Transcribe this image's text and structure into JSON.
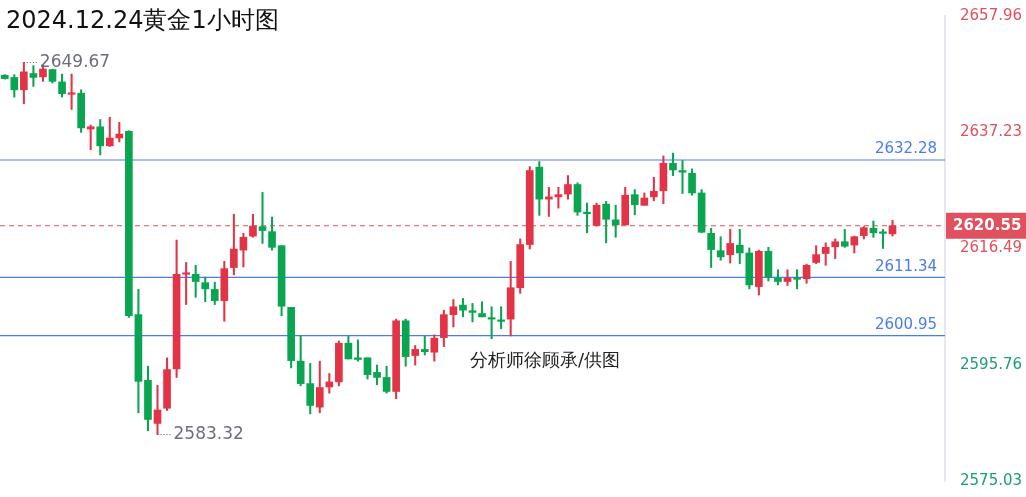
{
  "chart_data": {
    "type": "candlestick",
    "title": "2024.12.24黄金1小时图",
    "categories": [
      null,
      null,
      null,
      null,
      null,
      null,
      null,
      null,
      null,
      null,
      null,
      null,
      null,
      null,
      null,
      null,
      null,
      null,
      null,
      null,
      null,
      null,
      null,
      null,
      null,
      null,
      null,
      null,
      null,
      null,
      null,
      null,
      null,
      null,
      null,
      null,
      null,
      null,
      null,
      null,
      null,
      null,
      null,
      null,
      null,
      null,
      null,
      null,
      null,
      null,
      null,
      null,
      null,
      null,
      null,
      null,
      null,
      null,
      null,
      null,
      null,
      null,
      null,
      null,
      null,
      null,
      null,
      null,
      null,
      null,
      null,
      null,
      null,
      null,
      null,
      null,
      null,
      null,
      null,
      null,
      null,
      null,
      null,
      null,
      null,
      null,
      null,
      null,
      null,
      null,
      null,
      null,
      null,
      null,
      null,
      null,
      null,
      null,
      null
    ],
    "ohlc": [
      [
        2647.4,
        2647.5,
        2646.7,
        2646.8
      ],
      [
        2647.0,
        2647.5,
        2643.5,
        2644.8
      ],
      [
        2644.8,
        2649.67,
        2642.3,
        2648.0
      ],
      [
        2647.7,
        2649.1,
        2645.4,
        2647.0
      ],
      [
        2647.1,
        2649.3,
        2646.3,
        2648.5
      ],
      [
        2648.4,
        2648.5,
        2646.0,
        2646.3
      ],
      [
        2646.2,
        2647.6,
        2643.5,
        2644.1
      ],
      [
        2644.0,
        2647.6,
        2641.3,
        2644.2
      ],
      [
        2644.2,
        2644.8,
        2637.2,
        2638.0
      ],
      [
        2637.8,
        2638.5,
        2634.1,
        2638.2
      ],
      [
        2638.2,
        2639.5,
        2633.2,
        2634.8
      ],
      [
        2634.8,
        2639.9,
        2634.7,
        2636.2
      ],
      [
        2636.2,
        2639.0,
        2635.5,
        2636.9
      ],
      [
        2637.4,
        2637.5,
        2604.2,
        2604.5
      ],
      [
        2604.7,
        2609.2,
        2587.2,
        2592.8
      ],
      [
        2593.0,
        2595.5,
        2584.0,
        2586.0
      ],
      [
        2585.3,
        2592.1,
        2583.32,
        2587.7
      ],
      [
        2588.0,
        2597.0,
        2587.6,
        2594.9
      ],
      [
        2595.0,
        2618.0,
        2593.5,
        2611.9
      ],
      [
        2611.9,
        2614.0,
        2606.5,
        2612.1
      ],
      [
        2611.9,
        2613.5,
        2607.8,
        2610.6
      ],
      [
        2610.4,
        2611.4,
        2607.0,
        2609.3
      ],
      [
        2609.2,
        2610.5,
        2606.5,
        2607.2
      ],
      [
        2607.2,
        2614.2,
        2603.5,
        2612.9
      ],
      [
        2613.1,
        2622.6,
        2611.8,
        2616.4
      ],
      [
        2616.2,
        2619.2,
        2613.2,
        2618.5
      ],
      [
        2618.7,
        2622.6,
        2618.5,
        2620.5
      ],
      [
        2620.4,
        2626.5,
        2617.4,
        2619.7
      ],
      [
        2619.5,
        2622.1,
        2616.2,
        2616.7
      ],
      [
        2617.0,
        2617.0,
        2604.5,
        2606.2
      ],
      [
        2606.0,
        2606.0,
        2595.2,
        2596.5
      ],
      [
        2596.4,
        2600.9,
        2592.0,
        2592.4
      ],
      [
        2592.4,
        2596.0,
        2587.0,
        2588.5
      ],
      [
        2588.2,
        2596.4,
        2587.2,
        2591.7
      ],
      [
        2591.8,
        2594.2,
        2590.7,
        2592.7
      ],
      [
        2592.7,
        2600.0,
        2592.0,
        2599.6
      ],
      [
        2599.6,
        2600.9,
        2596.8,
        2596.8
      ],
      [
        2597.0,
        2600.2,
        2596.4,
        2596.7
      ],
      [
        2597.0,
        2597.0,
        2593.2,
        2594.0
      ],
      [
        2594.4,
        2595.7,
        2592.2,
        2593.5
      ],
      [
        2593.5,
        2595.5,
        2590.7,
        2591.0
      ],
      [
        2591.0,
        2603.9,
        2589.7,
        2603.6
      ],
      [
        2603.6,
        2603.9,
        2595.5,
        2597.2
      ],
      [
        2597.4,
        2599.2,
        2595.7,
        2598.5
      ],
      [
        2598.5,
        2600.9,
        2597.5,
        2598.1
      ],
      [
        2598.0,
        2601.1,
        2596.4,
        2600.5
      ],
      [
        2600.6,
        2605.5,
        2599.0,
        2604.7
      ],
      [
        2604.7,
        2607.4,
        2602.5,
        2606.1
      ],
      [
        2606.4,
        2607.6,
        2604.3,
        2605.5
      ],
      [
        2605.4,
        2606.7,
        2603.4,
        2605.1
      ],
      [
        2604.9,
        2607.0,
        2604.3,
        2604.3
      ],
      [
        2604.1,
        2606.1,
        2600.4,
        2603.9
      ],
      [
        2603.7,
        2606.1,
        2602.2,
        2603.5
      ],
      [
        2603.9,
        2614.2,
        2600.9,
        2609.5
      ],
      [
        2609.5,
        2618.2,
        2608.5,
        2617.2
      ],
      [
        2617.2,
        2631.1,
        2616.4,
        2630.4
      ],
      [
        2631.0,
        2632.0,
        2622.4,
        2625.3
      ],
      [
        2625.3,
        2627.4,
        2622.2,
        2625.7
      ],
      [
        2625.7,
        2627.4,
        2623.7,
        2626.1
      ],
      [
        2626.2,
        2629.5,
        2625.3,
        2627.9
      ],
      [
        2627.9,
        2628.2,
        2622.4,
        2623.0
      ],
      [
        2622.9,
        2624.6,
        2619.3,
        2622.7
      ],
      [
        2620.6,
        2624.6,
        2620.5,
        2624.2
      ],
      [
        2624.4,
        2624.9,
        2617.5,
        2621.7
      ],
      [
        2621.6,
        2624.2,
        2618.5,
        2620.7
      ],
      [
        2620.7,
        2627.4,
        2620.7,
        2626.0
      ],
      [
        2626.1,
        2627.0,
        2622.5,
        2624.3
      ],
      [
        2624.2,
        2626.4,
        2624.2,
        2625.5
      ],
      [
        2625.7,
        2629.2,
        2625.0,
        2626.7
      ],
      [
        2626.8,
        2633.0,
        2624.5,
        2631.7
      ],
      [
        2631.7,
        2633.5,
        2629.5,
        2630.5
      ],
      [
        2630.4,
        2632.2,
        2626.3,
        2630.1
      ],
      [
        2629.9,
        2630.7,
        2626.0,
        2626.4
      ],
      [
        2626.4,
        2627.0,
        2619.3,
        2619.4
      ],
      [
        2619.2,
        2620.1,
        2613.1,
        2616.3
      ],
      [
        2616.1,
        2618.6,
        2614.4,
        2615.0
      ],
      [
        2615.4,
        2619.9,
        2613.9,
        2617.4
      ],
      [
        2617.1,
        2619.9,
        2613.8,
        2615.7
      ],
      [
        2615.7,
        2616.6,
        2609.3,
        2610.0
      ],
      [
        2609.7,
        2616.2,
        2608.2,
        2616.0
      ],
      [
        2616.0,
        2616.7,
        2610.7,
        2611.4
      ],
      [
        2611.2,
        2612.7,
        2610.0,
        2610.6
      ],
      [
        2610.6,
        2612.7,
        2609.9,
        2611.2
      ],
      [
        2611.2,
        2612.7,
        2609.3,
        2611.0
      ],
      [
        2611.1,
        2613.7,
        2610.3,
        2613.5
      ],
      [
        2614.0,
        2617.0,
        2613.8,
        2615.4
      ],
      [
        2615.6,
        2617.5,
        2613.5,
        2616.7
      ],
      [
        2616.8,
        2618.2,
        2614.7,
        2617.7
      ],
      [
        2617.7,
        2619.9,
        2616.7,
        2616.9
      ],
      [
        2617.1,
        2618.7,
        2615.7,
        2618.6
      ],
      [
        2618.8,
        2620.4,
        2618.2,
        2620.2
      ],
      [
        2620.1,
        2621.4,
        2618.5,
        2619.3
      ],
      [
        2619.3,
        2619.9,
        2616.5,
        2619.2
      ],
      [
        2619.1,
        2621.5,
        2618.7,
        2620.55
      ],
      null,
      null,
      null,
      null,
      null
    ],
    "colors": [
      "#0aa550",
      "#0aa550",
      "#e33346",
      "#0aa550",
      "#e33346",
      "#0aa550",
      "#0aa550",
      "#e33346",
      "#0aa550",
      "#e33346",
      "#0aa550",
      "#e33346",
      "#e33346",
      "#0aa550",
      "#0aa550",
      "#0aa550",
      "#e33346",
      "#e33346",
      "#e33346",
      "#e33346",
      "#0aa550",
      "#0aa550",
      "#0aa550",
      "#e33346",
      "#e33346",
      "#e33346",
      "#e33346",
      "#0aa550",
      "#0aa550",
      "#0aa550",
      "#0aa550",
      "#0aa550",
      "#0aa550",
      "#e33346",
      "#e33346",
      "#e33346",
      "#0aa550",
      "#0aa550",
      "#0aa550",
      "#0aa550",
      "#0aa550",
      "#e33346",
      "#0aa550",
      "#e33346",
      "#0aa550",
      "#e33346",
      "#e33346",
      "#e33346",
      "#0aa550",
      "#0aa550",
      "#0aa550",
      "#0aa550",
      "#0aa550",
      "#e33346",
      "#e33346",
      "#e33346",
      "#0aa550",
      "#e33346",
      "#e33346",
      "#e33346",
      "#0aa550",
      "#0aa550",
      "#e33346",
      "#0aa550",
      "#0aa550",
      "#e33346",
      "#0aa550",
      "#e33346",
      "#e33346",
      "#e33346",
      "#0aa550",
      "#0aa550",
      "#0aa550",
      "#0aa550",
      "#0aa550",
      "#0aa550",
      "#e33346",
      "#0aa550",
      "#0aa550",
      "#e33346",
      "#0aa550",
      "#0aa550",
      "#e33346",
      "#0aa550",
      "#e33346",
      "#e33346",
      "#e33346",
      "#e33346",
      "#0aa550",
      "#e33346",
      "#e33346",
      "#0aa550",
      "#0aa550",
      "#e33346",
      null,
      null,
      null,
      null,
      null
    ],
    "ylim": [
      2575.03,
      2657.96
    ],
    "yticks": [
      2657.96,
      2637.23,
      2616.49,
      2595.76,
      2575.03
    ],
    "tick_labels": "y",
    "ref_lines": [
      {
        "axis": "y",
        "value": 2632.28,
        "label": "2632.28",
        "color": "#4a7cf0"
      },
      {
        "axis": "y",
        "value": 2611.34,
        "label": "2611.34",
        "color": "#4a7cf0"
      },
      {
        "axis": "y",
        "value": 2600.95,
        "label": "2600.95",
        "color": "#4a7cf0"
      },
      {
        "axis": "y",
        "value": 2620.55,
        "label": "2620.55",
        "color": "#e0505e",
        "line_style": "dashed"
      }
    ],
    "annotations": [
      "分析师徐顾承/供图",
      "2649.67",
      "2583.32"
    ]
  }
}
